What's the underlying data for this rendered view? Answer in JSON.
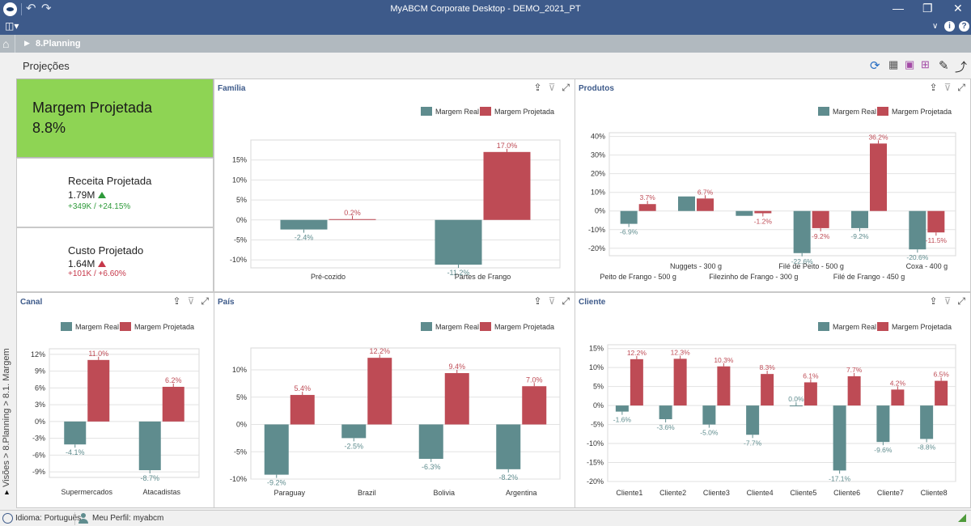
{
  "window": {
    "title": "MyABCM Corporate Desktop - DEMO_2021_PT"
  },
  "breadcrumb": {
    "label": "8.Planning"
  },
  "page": {
    "title": "Projeções"
  },
  "side_tab": {
    "label": "Visões > 8.Planning > 8.1. Margem"
  },
  "kpis": {
    "main": {
      "label": "Margem Projetada",
      "value": "8.8%",
      "color": "#8ed454"
    },
    "receita": {
      "label": "Receita Projetada",
      "value": "1.79M",
      "delta": "+349K  /  +24.15%",
      "trend": "up"
    },
    "custo": {
      "label": "Custo Projetado",
      "value": "1.64M",
      "delta": "+101K  /  +6.60%",
      "trend": "up"
    }
  },
  "colors": {
    "real": "#5f8c8e",
    "projetada": "#be4b55",
    "title": "#3d5a8a",
    "titlebar": "#3d5a8a"
  },
  "legend": {
    "real": "Margem Real",
    "projetada": "Margem Projetada"
  },
  "status": {
    "language": "Idioma: Português",
    "profile": "Meu Perfil: myabcm"
  },
  "chart_data": [
    {
      "id": "familia",
      "title": "Família",
      "type": "bar",
      "categories": [
        "Pré-cozido",
        "Partes de Frango"
      ],
      "series": [
        {
          "name": "Margem Real",
          "values": [
            -2.4,
            -11.2
          ]
        },
        {
          "name": "Margem Projetada",
          "values": [
            0.2,
            17.0
          ]
        }
      ],
      "yticks": [
        -10,
        -5,
        0,
        5,
        10,
        15
      ],
      "ylim": [
        -12,
        20
      ],
      "legend": "top-right",
      "grid": true
    },
    {
      "id": "produtos",
      "title": "Produtos",
      "type": "bar",
      "categories": [
        "Peito de Frango - 500 g",
        "Nuggets - 300 g",
        "Filezinho de Frango - 300 g",
        "Filé de Peito - 500 g",
        "Filé de Frango - 450 g",
        "Coxa - 400 g"
      ],
      "category_labels_shown": [
        "Peito de Frango - 500 g",
        "Nuggets - 300 g",
        "Filezinho de Frango - 300 g",
        "Filé de Peito - 500 g",
        "Filé de Frango - 450 g",
        "Coxa - 400 g"
      ],
      "series": [
        {
          "name": "Margem Real",
          "values": [
            -6.9,
            7.8,
            -2.6,
            -22.6,
            -9.2,
            -20.6
          ],
          "labels": [
            "-6.9%",
            null,
            null,
            "-22.6%",
            "-9.2%",
            "-20.6%"
          ]
        },
        {
          "name": "Margem Projetada",
          "values": [
            3.7,
            6.7,
            -1.2,
            -9.2,
            36.2,
            -11.5
          ],
          "labels": [
            "3.7%",
            "6.7%",
            "-1.2%",
            "-9.2%",
            "36.2%",
            "-11.5%"
          ]
        }
      ],
      "yticks": [
        -20,
        -10,
        0,
        10,
        20,
        30,
        40
      ],
      "ylim": [
        -24,
        42
      ],
      "legend": "top-right",
      "grid": true
    },
    {
      "id": "canal",
      "title": "Canal",
      "type": "bar",
      "categories": [
        "Supermercados",
        "Atacadistas"
      ],
      "series": [
        {
          "name": "Margem Real",
          "values": [
            -4.1,
            -8.7
          ]
        },
        {
          "name": "Margem Projetada",
          "values": [
            11.0,
            6.2
          ]
        }
      ],
      "yticks": [
        -9,
        -6,
        -3,
        0,
        3,
        6,
        9,
        12
      ],
      "ylim": [
        -10,
        13
      ],
      "legend": "top-right",
      "grid": true
    },
    {
      "id": "pais",
      "title": "País",
      "type": "bar",
      "categories": [
        "Paraguay",
        "Brazil",
        "Bolivia",
        "Argentina"
      ],
      "series": [
        {
          "name": "Margem Real",
          "values": [
            -9.2,
            -2.5,
            -6.3,
            -8.2
          ]
        },
        {
          "name": "Margem Projetada",
          "values": [
            5.4,
            12.2,
            9.4,
            7.0
          ]
        }
      ],
      "yticks": [
        -10,
        -5,
        0,
        5,
        10
      ],
      "ylim": [
        -10,
        14
      ],
      "legend": "top-right",
      "grid": true
    },
    {
      "id": "cliente",
      "title": "Cliente",
      "type": "bar",
      "categories": [
        "Cliente1",
        "Cliente2",
        "Cliente3",
        "Cliente4",
        "Cliente5",
        "Cliente6",
        "Cliente7",
        "Cliente8"
      ],
      "series": [
        {
          "name": "Margem Real",
          "values": [
            -1.6,
            -3.6,
            -5.0,
            -7.7,
            0.0,
            -17.1,
            -9.6,
            -8.8
          ]
        },
        {
          "name": "Margem Projetada",
          "values": [
            12.2,
            12.3,
            10.3,
            8.3,
            6.1,
            7.7,
            4.2,
            6.5
          ]
        }
      ],
      "yticks": [
        -20,
        -15,
        -10,
        -5,
        0,
        5,
        10,
        15
      ],
      "ylim": [
        -20,
        16
      ],
      "legend": "top-right",
      "grid": true
    }
  ]
}
